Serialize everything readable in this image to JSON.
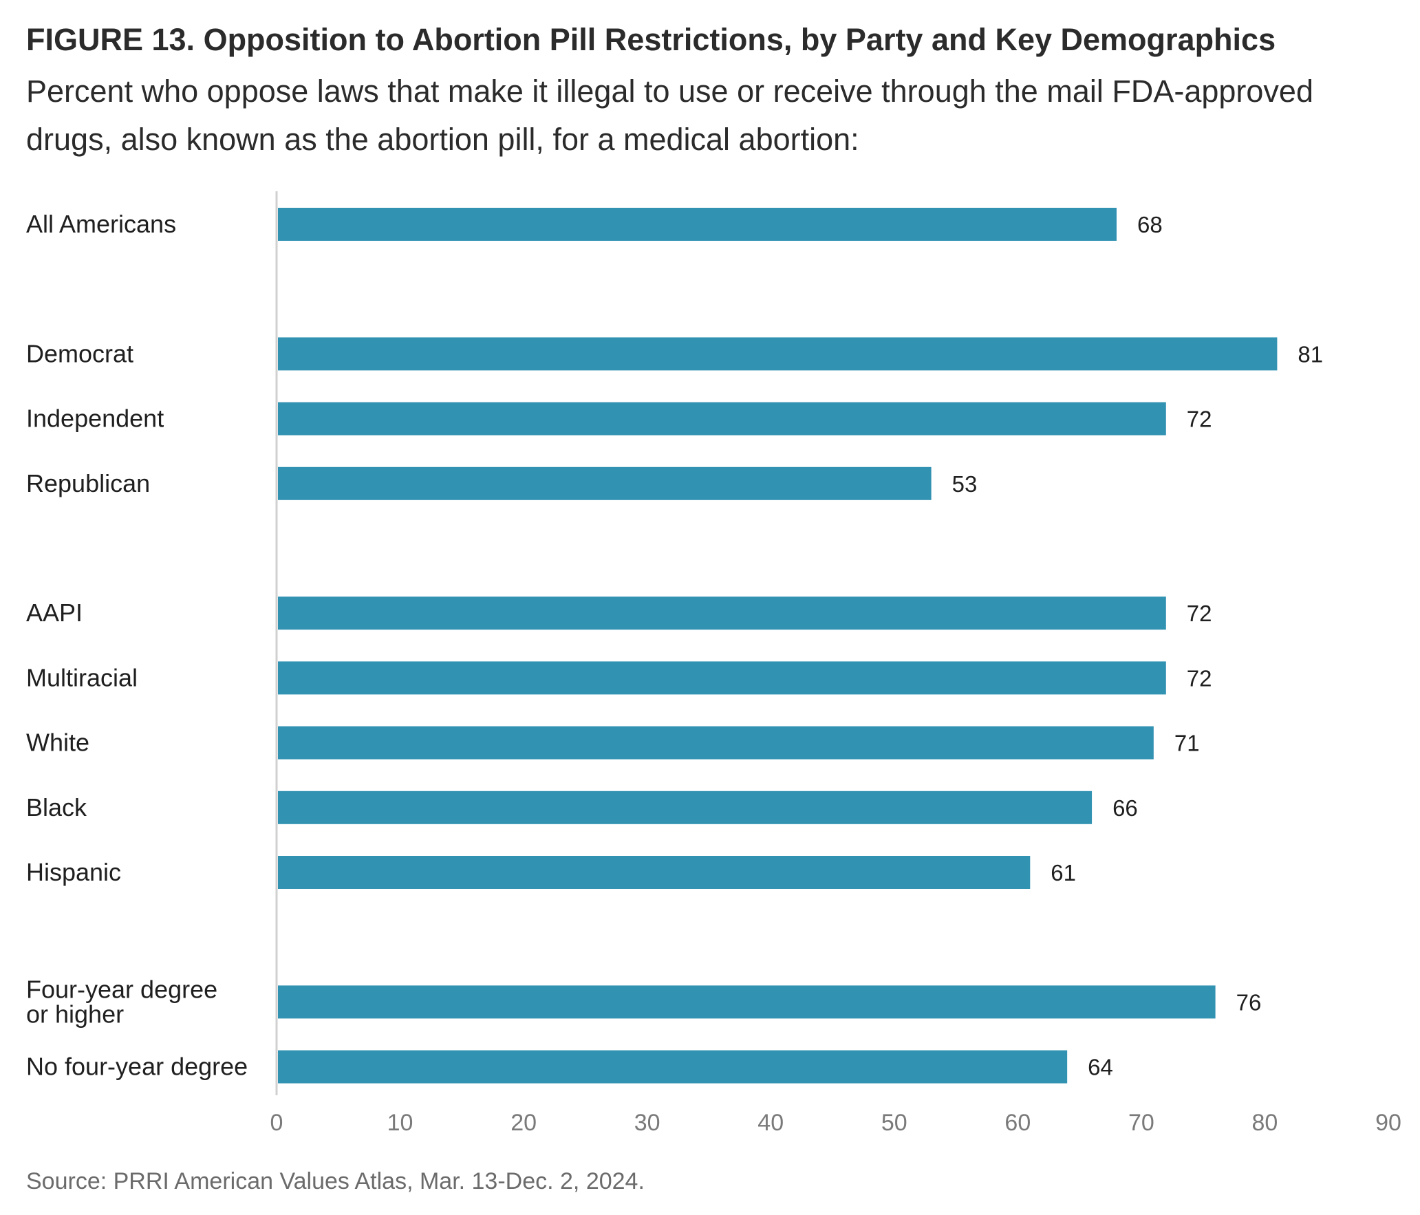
{
  "title": "FIGURE 13. Opposition to Abortion Pill Restrictions, by Party and Key Demographics",
  "subtitle": "Percent who oppose laws that make it illegal to use or receive through the mail FDA-approved drugs, also known as the abortion pill, for a medical abortion:",
  "source": "Source: PRRI American Values Atlas, Mar. 13-Dec. 2, 2024.",
  "colors": {
    "bar": "#3292b2",
    "axis": "#d0d0d0"
  },
  "chart_data": {
    "type": "bar",
    "orientation": "horizontal",
    "categories": [
      {
        "label": [
          "All Americans"
        ],
        "value": 68,
        "group": 0
      },
      {
        "label": [
          "Democrat"
        ],
        "value": 81,
        "group": 1
      },
      {
        "label": [
          "Independent"
        ],
        "value": 72,
        "group": 1
      },
      {
        "label": [
          "Republican"
        ],
        "value": 53,
        "group": 1
      },
      {
        "label": [
          "AAPI"
        ],
        "value": 72,
        "group": 2
      },
      {
        "label": [
          "Multiracial"
        ],
        "value": 72,
        "group": 2
      },
      {
        "label": [
          "White"
        ],
        "value": 71,
        "group": 2
      },
      {
        "label": [
          "Black"
        ],
        "value": 66,
        "group": 2
      },
      {
        "label": [
          "Hispanic"
        ],
        "value": 61,
        "group": 2
      },
      {
        "label": [
          "Four-year degree",
          "or higher"
        ],
        "value": 76,
        "group": 3
      },
      {
        "label": [
          "No four-year degree"
        ],
        "value": 64,
        "group": 3
      }
    ],
    "xlim": [
      0,
      90
    ],
    "xticks": [
      "0",
      "10",
      "20",
      "30",
      "40",
      "50",
      "60",
      "70",
      "80",
      "90"
    ],
    "grid": false,
    "legend": "none"
  }
}
